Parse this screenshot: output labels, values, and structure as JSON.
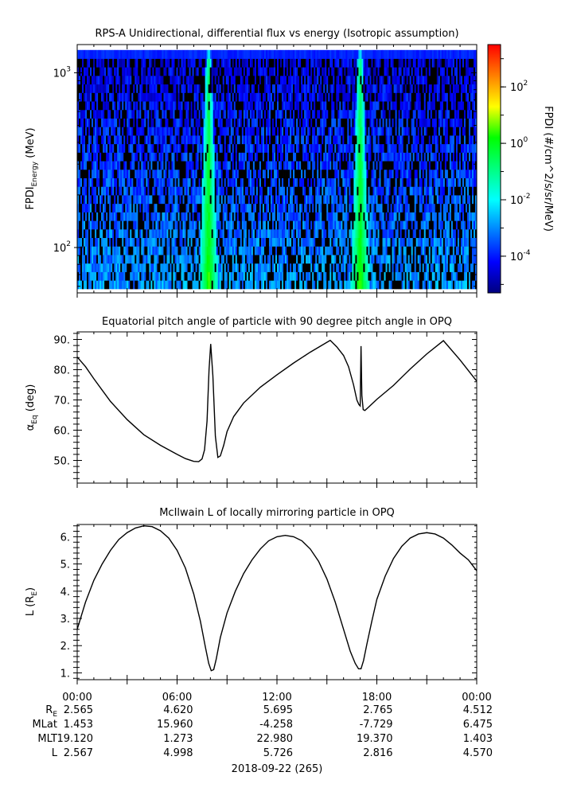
{
  "colors": {
    "axis": "#000000",
    "line": "#000000",
    "background": "#ffffff"
  },
  "chart_data": [
    {
      "type": "heatmap",
      "title": "RPS-A Unidirectional, differential flux vs energy (Isotropic assumption)",
      "ylabel_main": "FPDI",
      "ylabel_sub": "Energy",
      "ylabel_unit": "(MeV)",
      "y_scale": "log",
      "ylim": [
        55,
        1450
      ],
      "yticks": [
        {
          "value": 100,
          "base": "10",
          "exp": "2"
        },
        {
          "value": 1000,
          "base": "10",
          "exp": "3"
        }
      ],
      "xlim_hours": [
        0,
        24
      ],
      "colorbar": {
        "label": "FPDI (#/cm^2/s/sr/MeV)",
        "scale": "log",
        "range_log10": [
          -5.3,
          3.5
        ],
        "colormap": [
          "#00007f",
          "#0000ff",
          "#007fff",
          "#00ffff",
          "#00ff7f",
          "#00ff00",
          "#ffff00",
          "#ff7f00",
          "#ff0000"
        ],
        "ticks": [
          {
            "value_log10": 2,
            "base": "10",
            "exp": "2"
          },
          {
            "value_log10": 0,
            "base": "10",
            "exp": "0"
          },
          {
            "value_log10": -2,
            "base": "10",
            "exp": "-2"
          },
          {
            "value_log10": -4,
            "base": "10",
            "exp": "-4"
          }
        ]
      },
      "enhancements": [
        {
          "center_hours": 7.9,
          "peak_log10": 0.4
        },
        {
          "center_hours": 17.0,
          "peak_log10": 0.4
        }
      ]
    },
    {
      "type": "line",
      "title": "Equatorial pitch angle of particle with 90 degree pitch angle in OPQ",
      "ylabel_main": "α",
      "ylabel_sub": "Eq",
      "ylabel_unit": "(deg)",
      "ylim": [
        42.5,
        92.5
      ],
      "yticks": [
        {
          "value": 50,
          "label": "50."
        },
        {
          "value": 60,
          "label": "60."
        },
        {
          "value": 70,
          "label": "70."
        },
        {
          "value": 80,
          "label": "80."
        },
        {
          "value": 90,
          "label": "90."
        }
      ],
      "xlim_hours": [
        0,
        24
      ],
      "x": [
        0,
        0.5,
        1,
        2,
        3,
        4,
        5,
        6,
        6.5,
        7,
        7.3,
        7.5,
        7.65,
        7.8,
        7.92,
        8.02,
        8.15,
        8.3,
        8.45,
        8.6,
        8.8,
        9.0,
        9.4,
        10,
        11,
        12,
        13,
        14,
        15.2,
        15.6,
        16.0,
        16.3,
        16.6,
        16.8,
        16.92,
        17.0,
        17.05,
        17.1,
        17.18,
        17.28,
        17.5,
        18,
        19,
        20,
        21,
        22,
        23,
        24
      ],
      "y": [
        84.2,
        81,
        77,
        69.5,
        63.5,
        58.5,
        55,
        52,
        50.6,
        49.7,
        49.6,
        50.5,
        53.5,
        63,
        80,
        88.5,
        78,
        58,
        51,
        51.5,
        55,
        59.5,
        64.5,
        69,
        74.2,
        78.3,
        82.2,
        85.8,
        89.7,
        87.5,
        84.7,
        81,
        75,
        70,
        68.5,
        68,
        87.8,
        71.5,
        66.8,
        66.5,
        67.6,
        70.2,
        74.8,
        80.2,
        85.2,
        89.6,
        83.2,
        76.2
      ]
    },
    {
      "type": "line",
      "title": "McIlwain L of locally mirroring particle in OPQ",
      "ylabel_main": "L (R",
      "ylabel_sub": "E",
      "ylabel_unit": ")",
      "ylim": [
        0.75,
        6.45
      ],
      "yticks": [
        {
          "value": 1,
          "label": "1."
        },
        {
          "value": 2,
          "label": "2."
        },
        {
          "value": 3,
          "label": "3."
        },
        {
          "value": 4,
          "label": "4."
        },
        {
          "value": 5,
          "label": "5."
        },
        {
          "value": 6,
          "label": "6."
        }
      ],
      "xlim_hours": [
        0,
        24
      ],
      "x": [
        0,
        0.5,
        1,
        1.5,
        2,
        2.5,
        3,
        3.5,
        4,
        4.5,
        5,
        5.5,
        6,
        6.5,
        7,
        7.4,
        7.7,
        7.9,
        8.05,
        8.2,
        8.35,
        8.6,
        9,
        9.5,
        10,
        10.5,
        11,
        11.5,
        12,
        12.5,
        13,
        13.5,
        14,
        14.5,
        15,
        15.5,
        16,
        16.4,
        16.7,
        16.9,
        17.05,
        17.2,
        17.4,
        17.7,
        18,
        18.5,
        19,
        19.5,
        20,
        20.5,
        21,
        21.5,
        22,
        22.5,
        23,
        23.5,
        24
      ],
      "y": [
        2.6,
        3.6,
        4.4,
        5.0,
        5.5,
        5.9,
        6.15,
        6.32,
        6.4,
        6.37,
        6.22,
        5.95,
        5.5,
        4.85,
        3.9,
        2.9,
        1.95,
        1.35,
        1.08,
        1.12,
        1.5,
        2.3,
        3.2,
        4.0,
        4.65,
        5.15,
        5.55,
        5.85,
        6.0,
        6.05,
        6.0,
        5.85,
        5.55,
        5.1,
        4.45,
        3.6,
        2.6,
        1.8,
        1.35,
        1.15,
        1.15,
        1.45,
        2.05,
        2.9,
        3.7,
        4.55,
        5.2,
        5.65,
        5.95,
        6.1,
        6.15,
        6.1,
        5.95,
        5.7,
        5.4,
        5.15,
        4.75
      ]
    }
  ],
  "time_axis": {
    "tick_labels": [
      "00:00",
      "06:00",
      "12:00",
      "18:00",
      "00:00"
    ],
    "date_label": "2018-09-22 (265)"
  },
  "ephemeris": {
    "rows": [
      {
        "name": "R",
        "sub": "E",
        "values": [
          "2.565",
          "4.620",
          "5.695",
          "2.765",
          "4.512"
        ]
      },
      {
        "name": "MLat",
        "sub": "",
        "values": [
          "1.453",
          "15.960",
          "-4.258",
          "-7.729",
          "6.475"
        ]
      },
      {
        "name": "MLT",
        "sub": "",
        "values": [
          "19.120",
          "1.273",
          "22.980",
          "19.370",
          "1.403"
        ]
      },
      {
        "name": "L",
        "sub": "",
        "values": [
          "2.567",
          "4.998",
          "5.726",
          "2.816",
          "4.570"
        ]
      }
    ]
  }
}
